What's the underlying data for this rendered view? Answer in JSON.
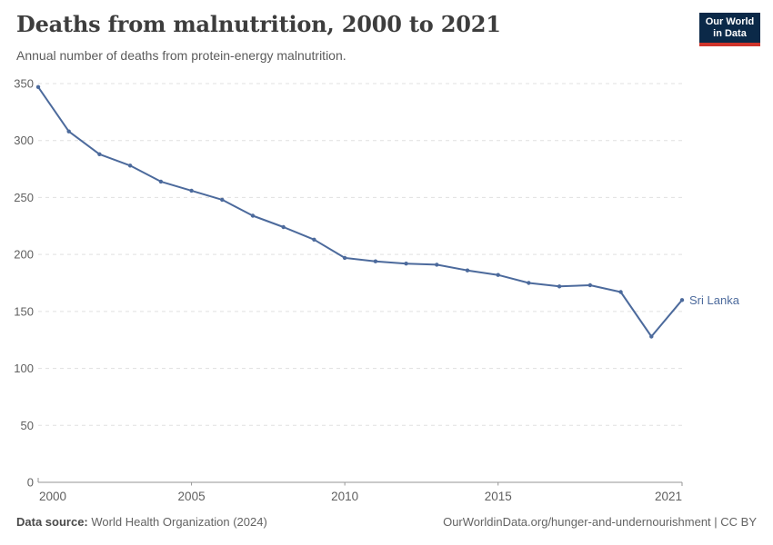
{
  "header": {
    "title": "Deaths from malnutrition, 2000 to 2021",
    "subtitle": "Annual number of deaths from protein-energy malnutrition."
  },
  "logo": {
    "line1": "Our World",
    "line2": "in Data",
    "bg_color": "#0b2948",
    "accent_color": "#cf342b"
  },
  "chart_data": {
    "type": "line",
    "title": "Deaths from malnutrition, 2000 to 2021",
    "subtitle": "Annual number of deaths from protein-energy malnutrition.",
    "x": [
      2000,
      2001,
      2002,
      2003,
      2004,
      2005,
      2006,
      2007,
      2008,
      2009,
      2010,
      2011,
      2012,
      2013,
      2014,
      2015,
      2016,
      2017,
      2018,
      2019,
      2020,
      2021
    ],
    "series": [
      {
        "name": "Sri Lanka",
        "color": "#4C6A9C",
        "values": [
          347,
          308,
          288,
          278,
          264,
          256,
          248,
          234,
          224,
          213,
          197,
          194,
          192,
          191,
          186,
          182,
          175,
          172,
          173,
          167,
          128,
          160
        ]
      }
    ],
    "xlabel": "",
    "ylabel": "",
    "ylim": [
      0,
      350
    ],
    "xlim": [
      2000,
      2021
    ],
    "yticks": [
      0,
      50,
      100,
      150,
      200,
      250,
      300,
      350
    ],
    "xticks": [
      2000,
      2005,
      2010,
      2015,
      2021
    ],
    "grid": "horizontal-dashed",
    "legend_position": "end-of-line-label",
    "end_label": "Sri Lanka"
  },
  "footer": {
    "datasource_label": "Data source:",
    "datasource_value": "World Health Organization (2024)",
    "url_text": "OurWorldinData.org/hunger-and-undernourishment | CC BY"
  },
  "colors": {
    "line": "#4C6A9C",
    "gridline": "#e0e0e0",
    "axis_line": "#969696",
    "tick_label": "#606060",
    "background": "#ffffff"
  }
}
